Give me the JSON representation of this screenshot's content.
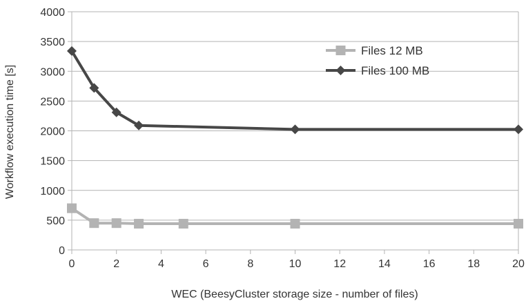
{
  "chart_data": {
    "type": "line",
    "title": "",
    "xlabel": "WEC (BeesyCluster storage size - number of files)",
    "ylabel": "Workflow execution time [s]",
    "xlim": [
      0,
      20
    ],
    "ylim": [
      0,
      4000
    ],
    "xticks": [
      0,
      2,
      4,
      6,
      8,
      10,
      12,
      14,
      16,
      18,
      20
    ],
    "yticks": [
      0,
      500,
      1000,
      1500,
      2000,
      2500,
      3000,
      3500,
      4000
    ],
    "grid": "horizontal",
    "legend_position": "top-right",
    "series": [
      {
        "name": "Files 12 MB",
        "color": "#b3b3b3",
        "marker": "square",
        "x": [
          0,
          1,
          2,
          3,
          5,
          10,
          20
        ],
        "y": [
          700,
          450,
          450,
          440,
          440,
          440,
          440
        ]
      },
      {
        "name": "Files 100 MB",
        "color": "#474747",
        "marker": "diamond",
        "x": [
          0,
          1,
          2,
          3,
          10,
          20
        ],
        "y": [
          3340,
          2720,
          2310,
          2090,
          2025,
          2025
        ]
      }
    ]
  }
}
